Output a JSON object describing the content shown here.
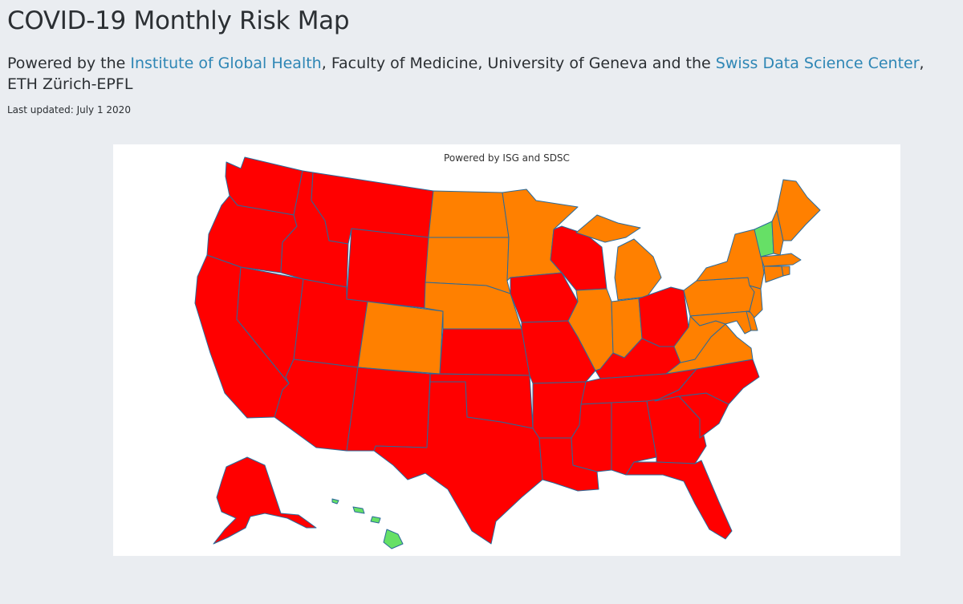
{
  "header": {
    "title": "COVID-19 Monthly Risk Map",
    "subtitle_prefix": "Powered by the ",
    "link1_label": "Institute of Global Health",
    "subtitle_middle": ", Faculty of Medicine, University of Geneva and the ",
    "link2_label": "Swiss Data Science Center",
    "subtitle_suffix": ", ETH Zürich-EPFL",
    "last_updated": "Last updated: July 1 2020"
  },
  "map": {
    "caption": "Powered by ISG and SDSC",
    "colors": {
      "high": "#ff0000",
      "medium": "#ff8000",
      "low": "#66e066",
      "border": "#2a6a9a"
    },
    "risk_levels": {
      "WA": "high",
      "OR": "high",
      "CA": "high",
      "NV": "high",
      "ID": "high",
      "MT": "high",
      "WY": "high",
      "UT": "high",
      "AZ": "high",
      "NM": "high",
      "TX": "high",
      "OK": "high",
      "KS": "high",
      "IA": "high",
      "MO": "high",
      "AR": "high",
      "LA": "high",
      "WI": "high",
      "OH": "high",
      "KY": "high",
      "TN": "high",
      "MS": "high",
      "AL": "high",
      "GA": "high",
      "FL": "high",
      "SC": "high",
      "NC": "high",
      "AK": "high",
      "ND": "medium",
      "SD": "medium",
      "NE": "medium",
      "CO": "medium",
      "MN": "medium",
      "MI": "medium",
      "IL": "medium",
      "IN": "medium",
      "WV": "medium",
      "VA": "medium",
      "PA": "medium",
      "NY": "medium",
      "NJ": "medium",
      "MD": "medium",
      "DE": "medium",
      "ME": "medium",
      "NH": "medium",
      "MA": "medium",
      "CT": "medium",
      "RI": "medium",
      "VT": "low",
      "HI": "low"
    }
  }
}
